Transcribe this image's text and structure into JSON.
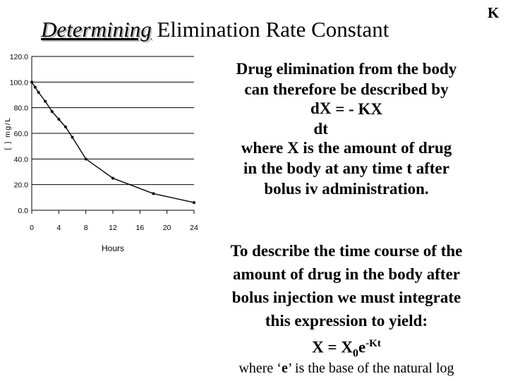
{
  "slide": {
    "title_italic": "Determining",
    "title_rest": " Elimination Rate Constant",
    "corner_letter": "K",
    "para1": {
      "line1": "Drug elimination from the body",
      "line2": "can therefore be described by",
      "eq_num": "dX",
      "eq_rhs": "= - KX",
      "eq_den": "dt",
      "line3": "where X is the amount of drug",
      "line4": "in the body at any time t after",
      "line5": "bolus iv administration."
    },
    "para2": {
      "line1": "To describe the time course of the",
      "line2": "amount of drug in the body after",
      "line3": "bolus injection we must integrate",
      "line4": "this expression to yield:",
      "eq_x": "X = X",
      "eq_sub": "0",
      "eq_e": "e",
      "eq_sup": "-Kt"
    },
    "footnote_start": "where ‘",
    "footnote_e": "e",
    "footnote_end": "’ is the base of the natural log"
  },
  "chart_data": {
    "type": "line",
    "ylabel": "[ ] mg/L",
    "xlabel": "Hours",
    "ylim": [
      0,
      120
    ],
    "xlim": [
      0,
      24
    ],
    "y_ticks": [
      "120.0",
      "100.0",
      "80.0",
      "60.0",
      "40.0",
      "20.0",
      "0.0"
    ],
    "x_ticks": [
      "0",
      "4",
      "8",
      "12",
      "16",
      "20",
      "24"
    ],
    "grid": true,
    "x": [
      0,
      0.5,
      1,
      2,
      3,
      4,
      5,
      6,
      8,
      12,
      18,
      24
    ],
    "values": [
      100,
      96,
      92,
      85,
      77,
      71,
      65,
      57,
      40,
      25,
      13,
      6
    ],
    "line_color": "#000000"
  }
}
